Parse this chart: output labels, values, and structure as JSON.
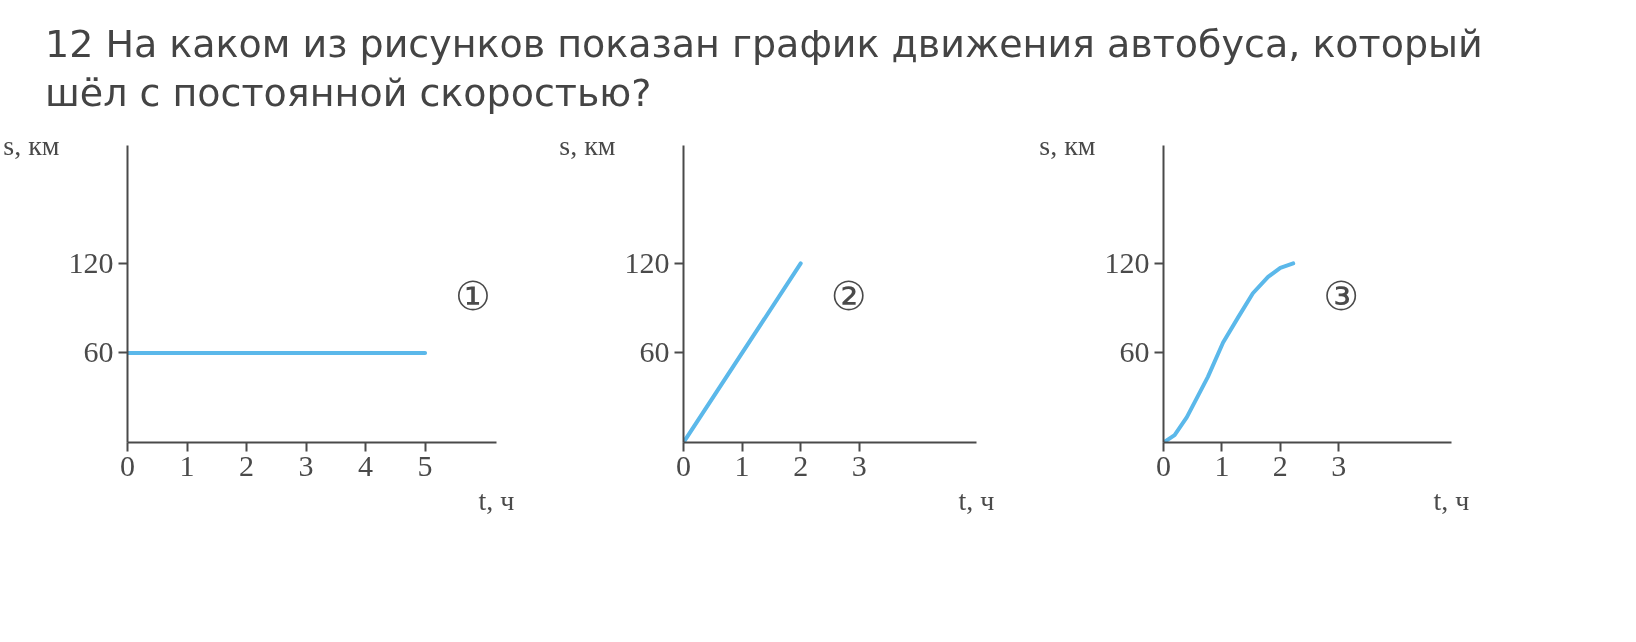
{
  "chart_data": [
    {
      "type": "line",
      "title": "12 На каком из рисунков показан график движения автобуса, который шёл с постоянной скоростью?",
      "xlabel": "t, ч",
      "ylabel": "s, км",
      "x": [
        0,
        5
      ],
      "series": [
        {
          "color": "#5bb8ea",
          "values": [
            60,
            60
          ]
        }
      ],
      "xlim": [
        0,
        6.2
      ],
      "ylim": [
        0,
        199
      ],
      "xticks": [
        0,
        1,
        2,
        3,
        4,
        5
      ],
      "yticks": [
        60,
        120
      ],
      "annotations": [
        "①"
      ],
      "grid": false,
      "marker": "none",
      "line_style": "solid"
    },
    {
      "type": "line",
      "xlabel": "t, ч",
      "ylabel": "s, км",
      "x": [
        0,
        2
      ],
      "series": [
        {
          "color": "#5bb8ea",
          "values": [
            0,
            120
          ]
        }
      ],
      "xlim": [
        0,
        5
      ],
      "ylim": [
        0,
        199
      ],
      "xticks": [
        0,
        1,
        2,
        3
      ],
      "yticks": [
        60,
        120
      ],
      "annotations": [
        "②"
      ],
      "grid": false,
      "marker": "none",
      "line_style": "solid"
    },
    {
      "type": "line",
      "xlabel": "t, ч",
      "ylabel": "s, км",
      "x": [
        0,
        0.19,
        0.4,
        0.76,
        1.02,
        1.28,
        1.53,
        1.79,
        2.0,
        2.22
      ],
      "series": [
        {
          "color": "#5bb8ea",
          "values": [
            0,
            5,
            17,
            44,
            67,
            84,
            100,
            111,
            117,
            120
          ]
        }
      ],
      "xlim": [
        0,
        4.93
      ],
      "ylim": [
        0,
        199
      ],
      "xticks": [
        0,
        1,
        2,
        3
      ],
      "yticks": [
        60,
        120
      ],
      "annotations": [
        "③"
      ],
      "grid": false,
      "marker": "none",
      "line_style": "solid"
    }
  ]
}
